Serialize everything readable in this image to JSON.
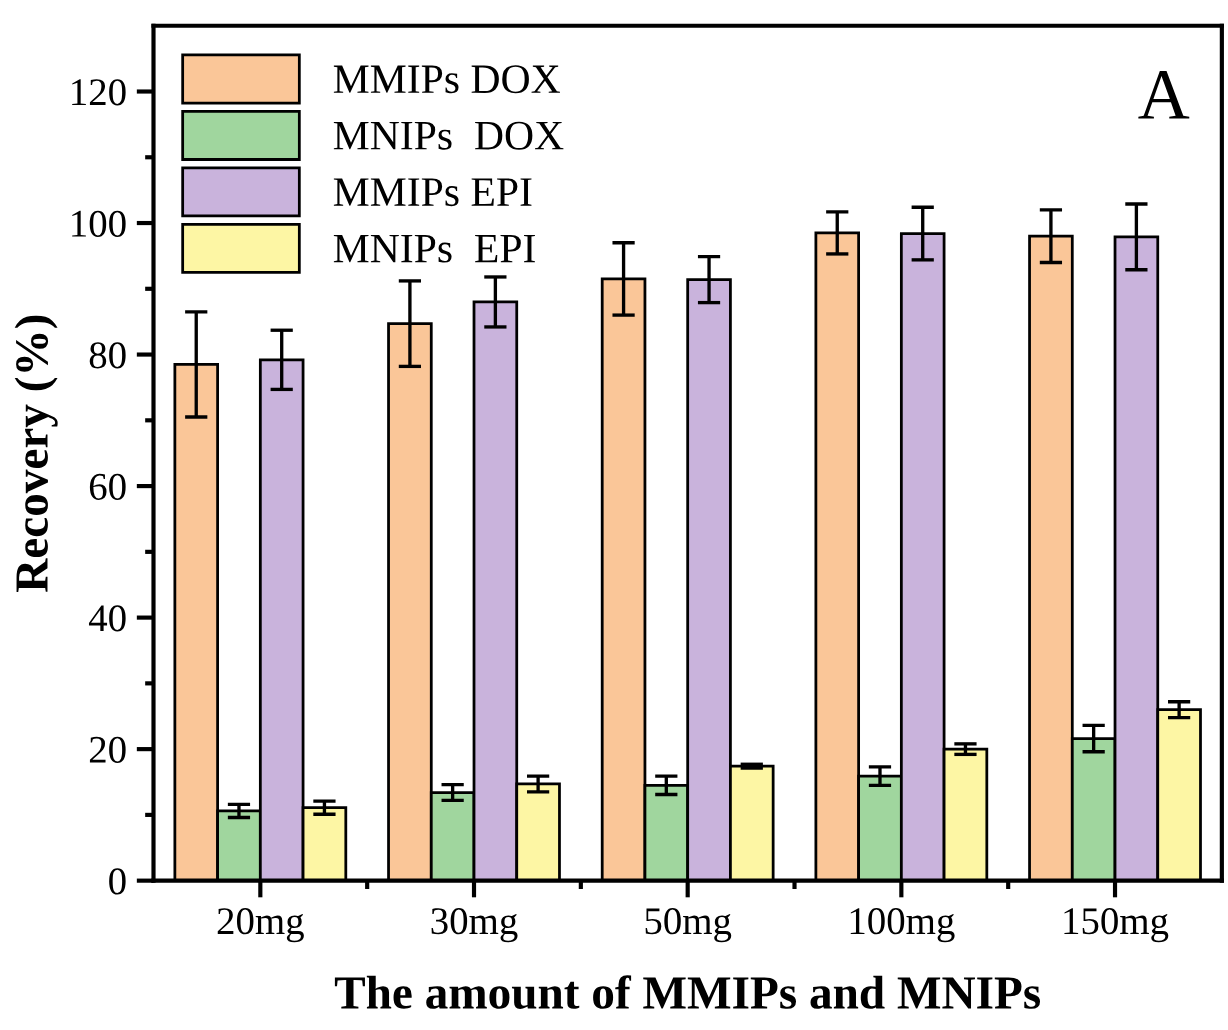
{
  "chart_data": {
    "type": "bar",
    "xlabel": "The amount of MMIPs and MNIPs",
    "ylabel": "Recovery (%)",
    "categories": [
      "20mg",
      "30mg",
      "50mg",
      "100mg",
      "150mg"
    ],
    "series": [
      {
        "name": "MMIPs DOX",
        "color": "#fac698",
        "values": [
          78.5,
          84.7,
          91.5,
          98.5,
          98.0
        ],
        "errors": [
          8,
          6.5,
          5.5,
          3.2,
          4
        ]
      },
      {
        "name": "MNIPs  DOX",
        "color": "#a0d69e",
        "values": [
          10.6,
          13.4,
          14.5,
          15.9,
          21.6
        ],
        "errors": [
          1,
          1.2,
          1.4,
          1.4,
          2
        ]
      },
      {
        "name": "MMIPs EPI",
        "color": "#c9b3dc",
        "values": [
          79.2,
          88.0,
          91.4,
          98.4,
          97.9
        ],
        "errors": [
          4.5,
          3.8,
          3.5,
          4,
          5
        ]
      },
      {
        "name": "MNIPs  EPI",
        "color": "#fdf6a4",
        "values": [
          11.1,
          14.7,
          17.4,
          20.0,
          26.0
        ],
        "errors": [
          1,
          1.2,
          0.3,
          0.8,
          1.2
        ]
      }
    ],
    "ylim": [
      0,
      130
    ],
    "yticks": [
      0,
      20,
      40,
      60,
      80,
      100,
      120
    ],
    "annotations": [
      "A"
    ],
    "legend": "top left",
    "grid": false
  }
}
